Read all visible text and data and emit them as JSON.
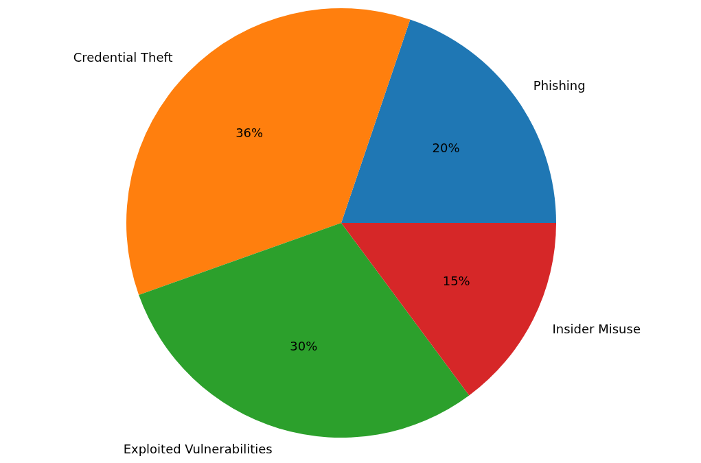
{
  "chart_data": {
    "type": "pie",
    "categories": [
      "Phishing",
      "Credential Theft",
      "Exploited Vulnerabilities",
      "Insider Misuse"
    ],
    "values": [
      20,
      36,
      30,
      15
    ],
    "colors": [
      "#1f77b4",
      "#ff7f0e",
      "#2ca02c",
      "#d62728"
    ],
    "value_labels": [
      "20%",
      "36%",
      "30%",
      "15%"
    ]
  }
}
